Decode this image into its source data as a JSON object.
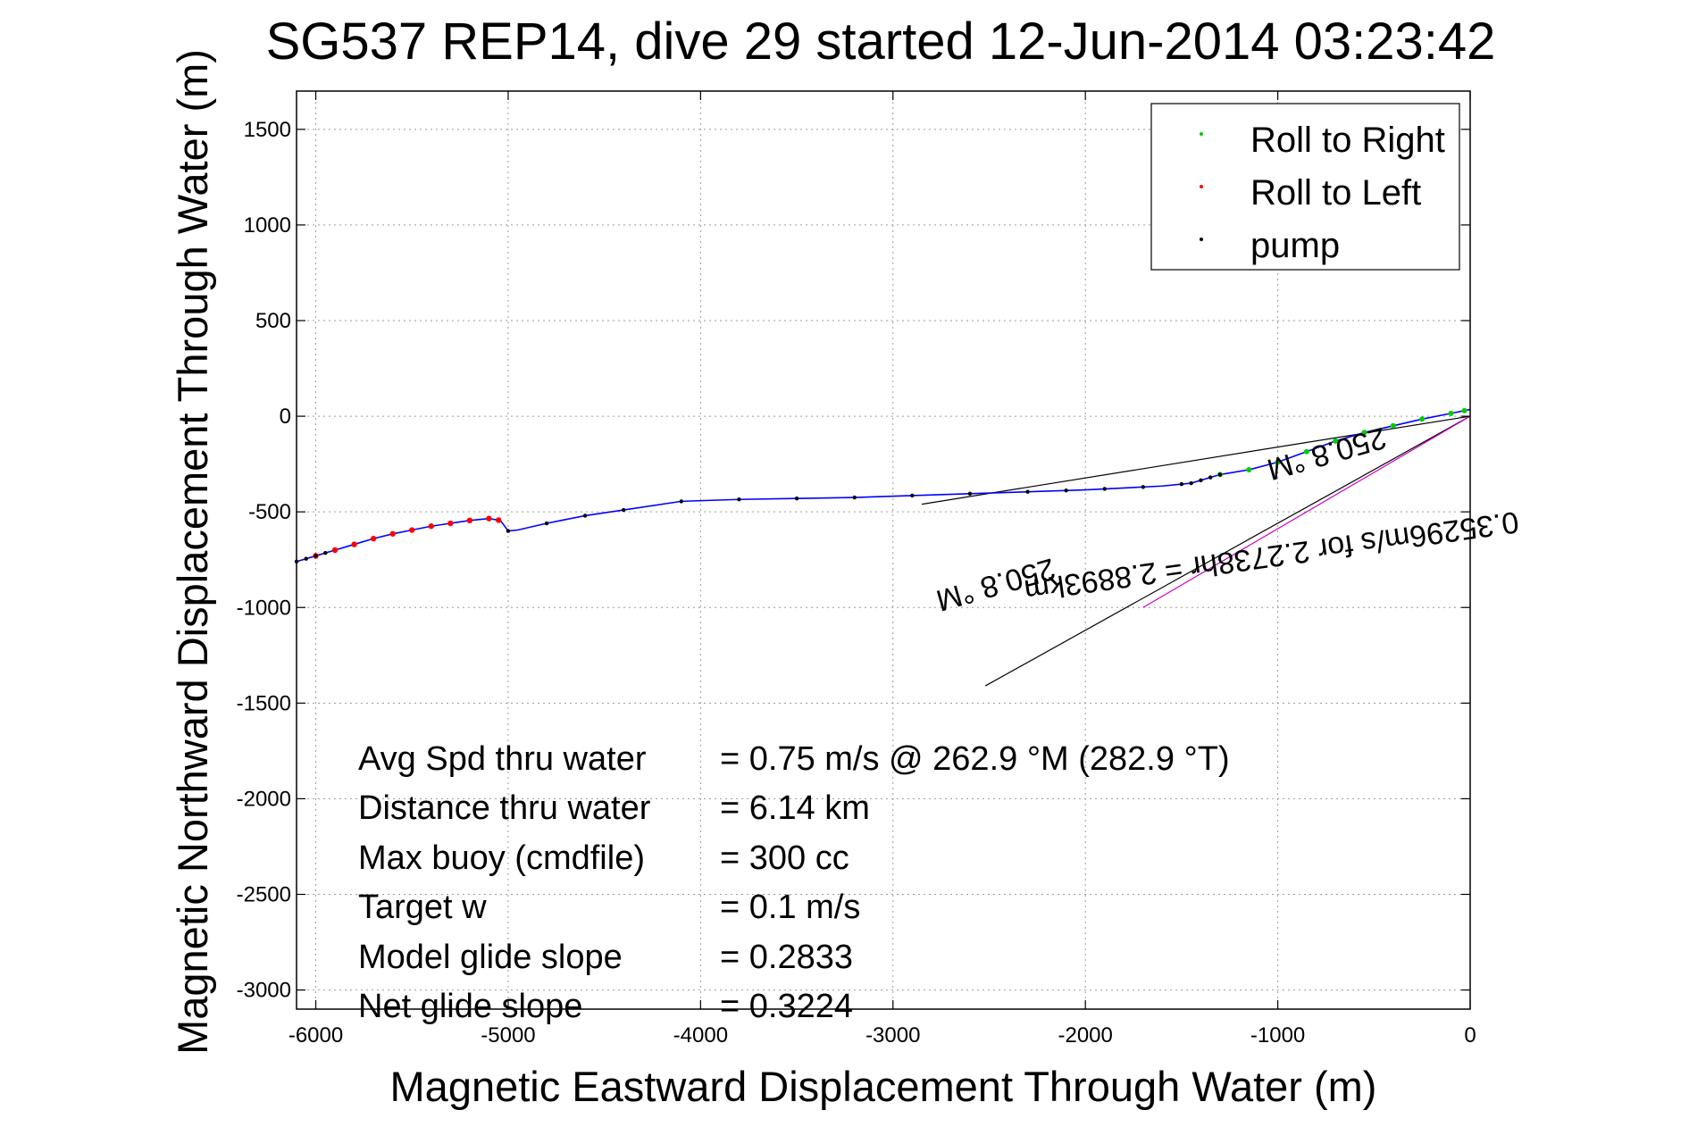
{
  "chart_data": {
    "type": "line",
    "title": "SG537 REP14, dive 29 started 12-Jun-2014 03:23:42",
    "xlabel": "Magnetic Eastward Displacement Through Water (m)",
    "ylabel": "Magnetic Northward Displacement Through Water (m)",
    "xlim": [
      -6100,
      0
    ],
    "ylim": [
      -3100,
      1700
    ],
    "xticks": [
      -6000,
      -5000,
      -4000,
      -3000,
      -2000,
      -1000,
      0
    ],
    "yticks": [
      1500,
      1000,
      500,
      0,
      -500,
      -1000,
      -1500,
      -2000,
      -2500,
      -3000
    ],
    "grid": true,
    "legend_position": "top-right",
    "legend": [
      {
        "label": "Roll to Right",
        "color": "#00cc00"
      },
      {
        "label": "Roll to Left",
        "color": "#ff0000"
      },
      {
        "label": "pump",
        "color": "#000000"
      }
    ],
    "track": {
      "color": "#0000ff",
      "points": [
        [
          -6100,
          -760
        ],
        [
          -6000,
          -730
        ],
        [
          -5900,
          -700
        ],
        [
          -5800,
          -670
        ],
        [
          -5700,
          -640
        ],
        [
          -5600,
          -615
        ],
        [
          -5500,
          -595
        ],
        [
          -5400,
          -575
        ],
        [
          -5300,
          -560
        ],
        [
          -5200,
          -545
        ],
        [
          -5100,
          -535
        ],
        [
          -5040,
          -545
        ],
        [
          -5000,
          -600
        ],
        [
          -4950,
          -595
        ],
        [
          -4800,
          -560
        ],
        [
          -4600,
          -520
        ],
        [
          -4400,
          -490
        ],
        [
          -4100,
          -445
        ],
        [
          -3800,
          -435
        ],
        [
          -3500,
          -430
        ],
        [
          -3200,
          -425
        ],
        [
          -2900,
          -415
        ],
        [
          -2600,
          -405
        ],
        [
          -2300,
          -395
        ],
        [
          -2000,
          -385
        ],
        [
          -1800,
          -375
        ],
        [
          -1600,
          -365
        ],
        [
          -1450,
          -350
        ],
        [
          -1300,
          -305
        ],
        [
          -1150,
          -280
        ],
        [
          -1000,
          -240
        ],
        [
          -850,
          -185
        ],
        [
          -700,
          -130
        ],
        [
          -550,
          -85
        ],
        [
          -400,
          -50
        ],
        [
          -250,
          -15
        ],
        [
          -100,
          15
        ],
        [
          0,
          35
        ]
      ]
    },
    "roll_left_x": [
      -6000,
      -5900,
      -5800,
      -5700,
      -5600,
      -5500,
      -5400,
      -5300,
      -5200,
      -5100,
      -5050
    ],
    "roll_right_x": [
      -1300,
      -1150,
      -1000,
      -850,
      -700,
      -550,
      -400,
      -250,
      -100,
      -30
    ],
    "pump_x": [
      -6100,
      -6050,
      -6000,
      -5950,
      -5000,
      -4800,
      -4600,
      -4400,
      -4100,
      -3800,
      -3500,
      -3200,
      -2900,
      -2600,
      -2300,
      -2100,
      -1900,
      -1700,
      -1500,
      -1450,
      -1400,
      -1350,
      -1300
    ],
    "reference_lines": [
      {
        "from": [
          0,
          0
        ],
        "to": [
          -2850,
          -460
        ]
      },
      {
        "from": [
          0,
          0
        ],
        "to": [
          -2520,
          -1410
        ]
      },
      {
        "from": [
          0,
          0
        ],
        "to": [
          -1700,
          -1000
        ],
        "color": "#cc00cc"
      }
    ],
    "annotations": [
      {
        "text": "0.35296m/s for 2.2738hr = 2.8893km",
        "at": [
          -1040,
          -680
        ],
        "angle": 172
      },
      {
        "text": "250.8 °M",
        "at": [
          -760,
          -145
        ],
        "angle": 164
      },
      {
        "text": "250.8 °M",
        "at": [
          -2480,
          -830
        ],
        "angle": 164
      }
    ],
    "stats": [
      {
        "label": "Avg Spd thru water",
        "value": "=  0.75 m/s @ 262.9 °M (282.9 °T)"
      },
      {
        "label": "Distance thru water",
        "value": "=  6.14 km"
      },
      {
        "label": "Max buoy (cmdfile)",
        "value": "= 300 cc"
      },
      {
        "label": "Target w",
        "value": "= 0.1 m/s"
      },
      {
        "label": "Model glide slope",
        "value": "= 0.2833"
      },
      {
        "label": "Net glide slope",
        "value": "= 0.3224"
      }
    ]
  }
}
